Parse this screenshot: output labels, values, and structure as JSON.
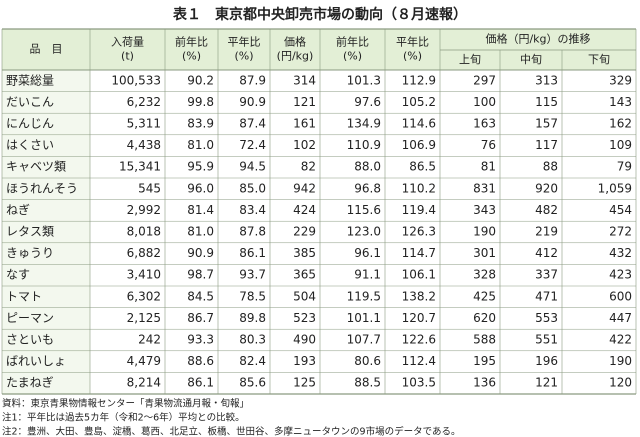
{
  "header": {
    "title": "表１　東京都中央卸売市場の動向（８月速報）"
  },
  "table": {
    "columns": [
      [
        "品　目"
      ],
      [
        "入荷量",
        "(t)"
      ],
      [
        "前年比",
        "(%)"
      ],
      [
        "平年比",
        "(%)"
      ],
      [
        "価格",
        "(円/kg)"
      ],
      [
        "前年比",
        "(%)"
      ],
      [
        "平年比",
        "(%)"
      ]
    ],
    "group": "価格（円/kg）の推移",
    "subcolumns": [
      "上旬",
      "中旬",
      "下旬"
    ],
    "rows": [
      [
        "野菜総量",
        "100,533",
        "90.2",
        "87.9",
        "314",
        "101.3",
        "112.9",
        "297",
        "313",
        "329"
      ],
      [
        "だいこん",
        "6,232",
        "99.8",
        "90.9",
        "121",
        "97.6",
        "105.2",
        "100",
        "115",
        "143"
      ],
      [
        "にんじん",
        "5,311",
        "83.9",
        "87.4",
        "161",
        "134.9",
        "114.6",
        "163",
        "157",
        "162"
      ],
      [
        "はくさい",
        "4,438",
        "81.0",
        "72.4",
        "102",
        "110.9",
        "106.9",
        "76",
        "117",
        "109"
      ],
      [
        "キャベツ類",
        "15,341",
        "95.9",
        "94.5",
        "82",
        "88.0",
        "86.5",
        "81",
        "88",
        "79"
      ],
      [
        "ほうれんそう",
        "545",
        "96.0",
        "85.0",
        "942",
        "96.8",
        "110.2",
        "831",
        "920",
        "1,059"
      ],
      [
        "ねぎ",
        "2,992",
        "81.4",
        "83.4",
        "424",
        "115.6",
        "119.4",
        "343",
        "482",
        "454"
      ],
      [
        "レタス類",
        "8,018",
        "81.0",
        "87.8",
        "229",
        "123.0",
        "126.3",
        "190",
        "219",
        "272"
      ],
      [
        "きゅうり",
        "6,882",
        "90.9",
        "86.1",
        "385",
        "96.1",
        "114.7",
        "301",
        "412",
        "432"
      ],
      [
        "なす",
        "3,410",
        "98.7",
        "93.7",
        "365",
        "91.1",
        "106.1",
        "328",
        "337",
        "423"
      ],
      [
        "トマト",
        "6,302",
        "84.5",
        "78.5",
        "504",
        "119.5",
        "138.2",
        "425",
        "471",
        "600"
      ],
      [
        "ピーマン",
        "2,125",
        "86.7",
        "89.8",
        "523",
        "101.1",
        "120.7",
        "620",
        "553",
        "447"
      ],
      [
        "さといも",
        "242",
        "93.3",
        "80.3",
        "490",
        "107.7",
        "122.6",
        "588",
        "551",
        "422"
      ],
      [
        "ばれいしょ",
        "4,479",
        "88.6",
        "82.4",
        "193",
        "80.6",
        "112.4",
        "195",
        "196",
        "190"
      ],
      [
        "たまねぎ",
        "8,214",
        "86.1",
        "85.6",
        "125",
        "88.5",
        "103.5",
        "136",
        "121",
        "120"
      ]
    ]
  },
  "notes": [
    "資料：東京青果物情報センター「青果物流通月報・旬報」",
    "注1：平年比は過去5カ年（令和2～6年）平均との比較。",
    "注2：豊洲、大田、豊島、淀橋、葛西、北足立、板橋、世田谷、多摩ニュータウンの9市場のデータである。"
  ]
}
